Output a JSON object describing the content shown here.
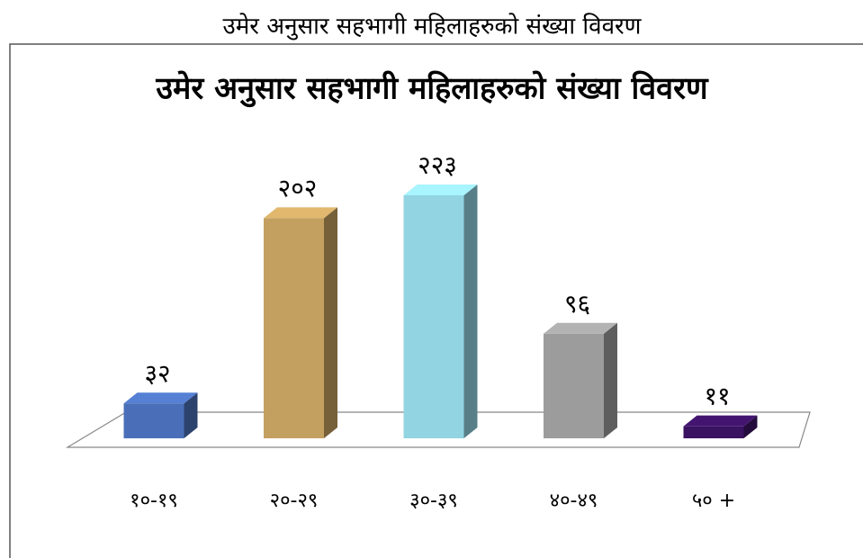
{
  "chart_data": {
    "type": "bar3d",
    "caption": "उमेर अनुसार सहभागी महिलाहरुको संख्या विवरण",
    "title": "उमेर अनुसार सहभागी महिलाहरुको संख्या विवरण",
    "categories": [
      "१०-१९",
      "२०-२९",
      "३०-३९",
      "४०-४९",
      "५० +"
    ],
    "values": [
      32,
      202,
      223,
      96,
      11
    ],
    "value_labels": [
      "३२",
      "२०२",
      "२२३",
      "९६",
      "११"
    ],
    "colors": [
      "#4a6fb8",
      "#c4a060",
      "#92d4e2",
      "#9c9c9c",
      "#3a1262"
    ]
  }
}
